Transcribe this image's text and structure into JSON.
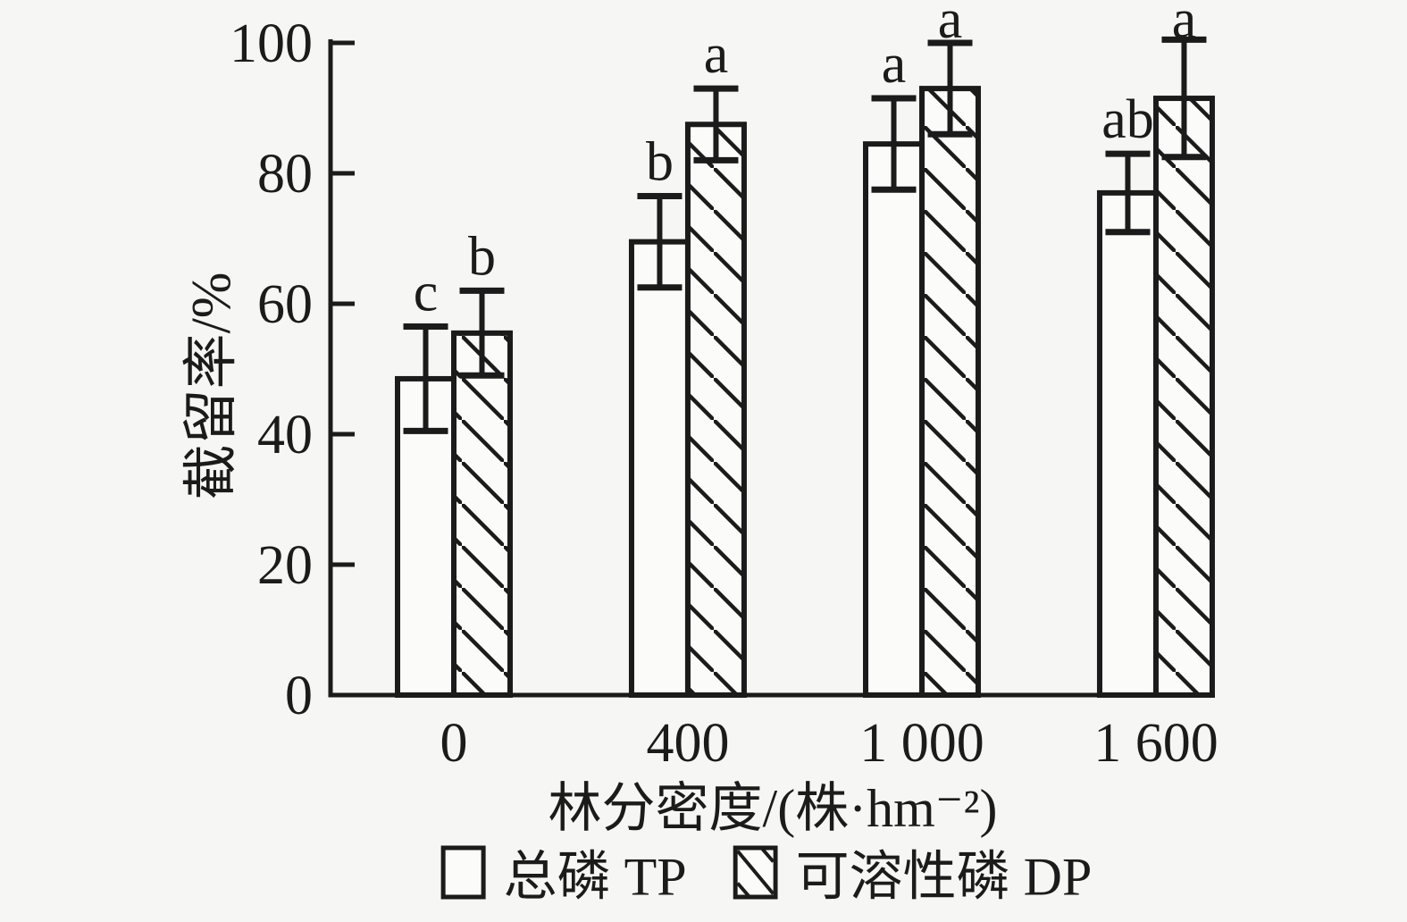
{
  "chart_data": {
    "type": "bar",
    "title": "",
    "xlabel": "林分密度/(株·hm⁻²)",
    "ylabel": "截留率/%",
    "categories": [
      "0",
      "400",
      "1 000",
      "1 600"
    ],
    "series": [
      {
        "name": "总磷 TP",
        "fill": "plain",
        "values": [
          48.5,
          69.5,
          84.5,
          77
        ],
        "errors": [
          8,
          7,
          7,
          6
        ],
        "letters": [
          "c",
          "b",
          "a",
          "ab"
        ]
      },
      {
        "name": "可溶性磷 DP",
        "fill": "hatch",
        "values": [
          55.5,
          87.5,
          93,
          91.5
        ],
        "errors": [
          6.5,
          5.5,
          7,
          9
        ],
        "letters": [
          "b",
          "a",
          "a",
          "a"
        ]
      }
    ],
    "ylim": [
      0,
      100
    ],
    "yticks": [
      0,
      20,
      40,
      60,
      80,
      100
    ],
    "grid": false,
    "legend_position": "bottom",
    "colors": {
      "ink": "#1b1b1b",
      "background": "#f6f6f4",
      "bar_fill": "#fbfbfa"
    }
  }
}
